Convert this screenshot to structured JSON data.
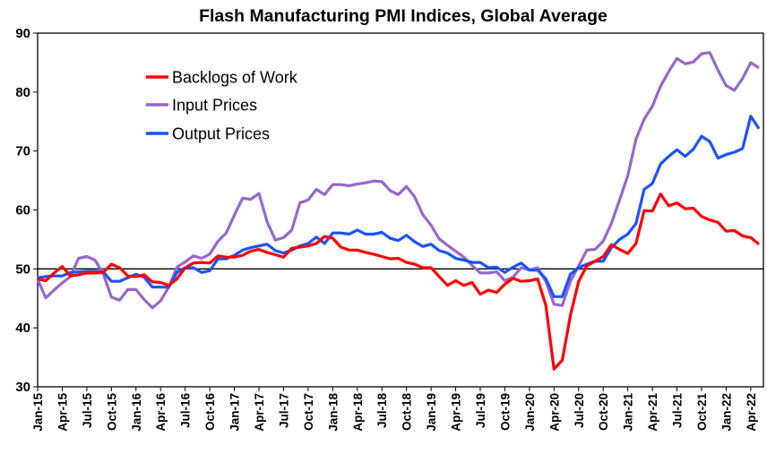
{
  "chart_data": {
    "type": "line",
    "title": "Flash Manufacturing PMI Indices, Global Average",
    "xlabel": "",
    "ylabel": "",
    "ylim": [
      30,
      90
    ],
    "yticks": [
      30,
      40,
      50,
      60,
      70,
      80,
      90
    ],
    "reference_line": 50,
    "grid": false,
    "legend_position": "top-left",
    "xtick_labels": [
      "Jan-15",
      "Apr-15",
      "Jul-15",
      "Oct-15",
      "Jan-16",
      "Apr-16",
      "Jul-16",
      "Oct-16",
      "Jan-17",
      "Apr-17",
      "Jul-17",
      "Oct-17",
      "Jan-18",
      "Apr-18",
      "Jul-18",
      "Oct-18",
      "Jan-19",
      "Apr-19",
      "Jul-19",
      "Oct-19",
      "Jan-20",
      "Apr-20",
      "Jul-20",
      "Oct-20",
      "Jan-21",
      "Apr-21",
      "Jul-21",
      "Oct-21",
      "Jan-22",
      "Apr-22"
    ],
    "x": [
      "Jan-15",
      "Feb-15",
      "Mar-15",
      "Apr-15",
      "May-15",
      "Jun-15",
      "Jul-15",
      "Aug-15",
      "Sep-15",
      "Oct-15",
      "Nov-15",
      "Dec-15",
      "Jan-16",
      "Feb-16",
      "Mar-16",
      "Apr-16",
      "May-16",
      "Jun-16",
      "Jul-16",
      "Aug-16",
      "Sep-16",
      "Oct-16",
      "Nov-16",
      "Dec-16",
      "Jan-17",
      "Feb-17",
      "Mar-17",
      "Apr-17",
      "May-17",
      "Jun-17",
      "Jul-17",
      "Aug-17",
      "Sep-17",
      "Oct-17",
      "Nov-17",
      "Dec-17",
      "Jan-18",
      "Feb-18",
      "Mar-18",
      "Apr-18",
      "May-18",
      "Jun-18",
      "Jul-18",
      "Aug-18",
      "Sep-18",
      "Oct-18",
      "Nov-18",
      "Dec-18",
      "Jan-19",
      "Feb-19",
      "Mar-19",
      "Apr-19",
      "May-19",
      "Jun-19",
      "Jul-19",
      "Aug-19",
      "Sep-19",
      "Oct-19",
      "Nov-19",
      "Dec-19",
      "Jan-20",
      "Feb-20",
      "Mar-20",
      "Apr-20",
      "May-20",
      "Jun-20",
      "Jul-20",
      "Aug-20",
      "Sep-20",
      "Oct-20",
      "Nov-20",
      "Dec-20",
      "Jan-21",
      "Feb-21",
      "Mar-21",
      "Apr-21",
      "May-21",
      "Jun-21",
      "Jul-21",
      "Aug-21",
      "Sep-21",
      "Oct-21",
      "Nov-21",
      "Dec-21",
      "Jan-22",
      "Feb-22",
      "Mar-22",
      "Apr-22",
      "May-22"
    ],
    "series": [
      {
        "name": "Backlogs of Work",
        "color": "#ff0000",
        "values": [
          48.3,
          48.0,
          49.3,
          50.4,
          48.8,
          49.0,
          49.3,
          49.3,
          49.4,
          50.8,
          50.2,
          48.8,
          48.7,
          49.0,
          47.8,
          47.7,
          47.2,
          48.3,
          50.2,
          51.0,
          51.1,
          51.0,
          52.2,
          52.0,
          52.0,
          52.3,
          53.0,
          53.3,
          52.8,
          52.4,
          52.0,
          53.5,
          53.7,
          53.9,
          54.3,
          55.5,
          55.2,
          53.7,
          53.2,
          53.2,
          52.8,
          52.5,
          52.1,
          51.7,
          51.8,
          51.1,
          50.8,
          50.2,
          50.2,
          48.7,
          47.2,
          48.0,
          47.2,
          47.7,
          45.7,
          46.4,
          46.0,
          47.4,
          48.4,
          47.9,
          48.0,
          48.3,
          43.8,
          33.0,
          34.5,
          42.1,
          47.9,
          50.5,
          51.3,
          52.1,
          54.1,
          53.3,
          52.6,
          54.3,
          59.9,
          59.8,
          62.7,
          60.7,
          61.2,
          60.2,
          60.3,
          58.9,
          58.3,
          57.9,
          56.4,
          56.5,
          55.6,
          55.3,
          54.2
        ]
      },
      {
        "name": "Input Prices",
        "color": "#9966cc",
        "values": [
          48.2,
          45.1,
          46.4,
          47.6,
          48.7,
          51.8,
          52.1,
          51.5,
          49.2,
          45.2,
          44.7,
          46.5,
          46.5,
          44.8,
          43.4,
          44.6,
          46.9,
          50.3,
          51.2,
          52.2,
          51.8,
          52.5,
          54.7,
          56.1,
          59.1,
          62.0,
          61.8,
          62.8,
          58.0,
          54.9,
          55.3,
          56.6,
          61.2,
          61.7,
          63.5,
          62.6,
          64.3,
          64.3,
          64.1,
          64.4,
          64.6,
          64.9,
          64.8,
          63.3,
          62.6,
          64.0,
          62.2,
          59.2,
          57.4,
          55.1,
          54.0,
          53.0,
          52.0,
          50.6,
          49.3,
          49.3,
          49.5,
          48.0,
          48.6,
          50.2,
          49.8,
          50.2,
          47.9,
          44.0,
          43.8,
          47.9,
          50.5,
          53.2,
          53.3,
          54.7,
          57.7,
          61.7,
          65.8,
          72.0,
          75.4,
          77.6,
          81.0,
          83.5,
          85.7,
          84.8,
          85.1,
          86.5,
          86.7,
          83.7,
          81.1,
          80.3,
          82.3,
          85.0,
          84.1
        ]
      },
      {
        "name": "Output Prices",
        "color": "#1a53ff",
        "values": [
          48.5,
          48.7,
          48.8,
          48.8,
          49.4,
          49.5,
          49.6,
          49.6,
          49.5,
          47.9,
          47.9,
          48.5,
          49.1,
          48.6,
          46.9,
          46.9,
          46.9,
          49.4,
          50.2,
          50.2,
          49.4,
          49.7,
          51.7,
          51.7,
          52.3,
          53.2,
          53.6,
          53.9,
          54.2,
          53.1,
          52.7,
          53.2,
          53.9,
          54.3,
          55.4,
          54.3,
          56.1,
          56.1,
          55.9,
          56.6,
          55.9,
          55.9,
          56.2,
          55.2,
          54.8,
          55.7,
          54.6,
          53.8,
          54.2,
          53.1,
          52.7,
          51.8,
          51.5,
          51.1,
          51.1,
          50.2,
          50.3,
          49.4,
          50.3,
          51.0,
          49.8,
          49.8,
          48.3,
          45.3,
          45.3,
          49.1,
          50.2,
          50.8,
          51.3,
          51.3,
          53.6,
          55.0,
          55.9,
          57.7,
          63.5,
          64.5,
          67.8,
          69.1,
          70.2,
          69.1,
          70.3,
          72.5,
          71.6,
          68.8,
          69.4,
          69.8,
          70.4,
          75.9,
          73.8
        ]
      }
    ]
  }
}
